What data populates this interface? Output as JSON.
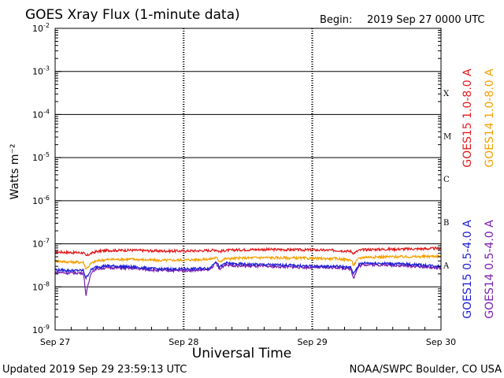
{
  "header": {
    "title": "GOES Xray Flux (1-minute data)",
    "begin_label": "Begin:",
    "begin_value": "2019 Sep 27 0000 UTC"
  },
  "footer": {
    "updated": "Updated 2019 Sep 29 23:59:13 UTC",
    "credit": "NOAA/SWPC Boulder, CO USA"
  },
  "colors": {
    "goes15_long": "#e41a1c",
    "goes14_long": "#f5a000",
    "goes15_short": "#1f1fd6",
    "goes14_short": "#7a1fb0"
  },
  "chart_data": {
    "type": "line",
    "title": "GOES Xray Flux (1-minute data)",
    "xlabel": "Universal Time",
    "ylabel": "Watts m⁻²",
    "y_scale": "log",
    "ylim": [
      1e-09,
      0.01
    ],
    "xlim": [
      "2019-09-27",
      "2019-09-30"
    ],
    "x_ticks": [
      "Sep 27",
      "Sep 28",
      "Sep 29",
      "Sep 30"
    ],
    "y_ticks": [
      {
        "value": 1e-09,
        "base": "10",
        "exp": "-9"
      },
      {
        "value": 1e-08,
        "base": "10",
        "exp": "-8"
      },
      {
        "value": 1e-07,
        "base": "10",
        "exp": "-7"
      },
      {
        "value": 1e-06,
        "base": "10",
        "exp": "-6"
      },
      {
        "value": 1e-05,
        "base": "10",
        "exp": "-5"
      },
      {
        "value": 0.0001,
        "base": "10",
        "exp": "-4"
      },
      {
        "value": 0.001,
        "base": "10",
        "exp": "-3"
      },
      {
        "value": 0.01,
        "base": "10",
        "exp": "-2"
      }
    ],
    "flare_classes": [
      {
        "label": "A",
        "value": 3.2e-08
      },
      {
        "label": "B",
        "value": 3.2e-07
      },
      {
        "label": "C",
        "value": 3.2e-06
      },
      {
        "label": "M",
        "value": 3.2e-05
      },
      {
        "label": "X",
        "value": 0.00032
      }
    ],
    "series": [
      {
        "name": "GOES15 1.0-8.0 A",
        "x": [
          0,
          0.1,
          0.22,
          0.24,
          0.28,
          0.32,
          0.4,
          0.6,
          0.8,
          1.0,
          1.2,
          1.25,
          1.28,
          1.32,
          1.4,
          1.6,
          1.8,
          2.0,
          2.2,
          2.3,
          2.32,
          2.36,
          2.4,
          2.6,
          2.8,
          3.0
        ],
        "values": [
          6.5e-08,
          6.3e-08,
          6.2e-08,
          5.2e-08,
          6e-08,
          6.6e-08,
          7e-08,
          7.1e-08,
          6.8e-08,
          6.8e-08,
          7e-08,
          7.3e-08,
          6.6e-08,
          7e-08,
          7.2e-08,
          7.4e-08,
          7.3e-08,
          7.2e-08,
          7e-08,
          6.7e-08,
          6e-08,
          7e-08,
          7.3e-08,
          7.5e-08,
          7.6e-08,
          7.8e-08
        ]
      },
      {
        "name": "GOES14 1.0-8.0 A",
        "x": [
          0,
          0.1,
          0.22,
          0.24,
          0.28,
          0.32,
          0.4,
          0.6,
          0.8,
          1.0,
          1.2,
          1.25,
          1.28,
          1.32,
          1.4,
          1.6,
          1.8,
          2.0,
          2.2,
          2.3,
          2.32,
          2.36,
          2.4,
          2.6,
          2.8,
          3.0
        ],
        "values": [
          4e-08,
          3.8e-08,
          3.7e-08,
          2.6e-08,
          3.5e-08,
          4e-08,
          4.3e-08,
          4.4e-08,
          4.1e-08,
          4.2e-08,
          4.4e-08,
          4.8e-08,
          3.9e-08,
          4.5e-08,
          4.6e-08,
          4.8e-08,
          4.7e-08,
          4.6e-08,
          4.5e-08,
          4.2e-08,
          3.2e-08,
          4.6e-08,
          4.9e-08,
          5e-08,
          5e-08,
          5.2e-08
        ]
      },
      {
        "name": "GOES15 0.5-4.0 A",
        "x": [
          0,
          0.1,
          0.22,
          0.24,
          0.28,
          0.32,
          0.4,
          0.6,
          0.8,
          1.0,
          1.2,
          1.25,
          1.28,
          1.32,
          1.4,
          1.6,
          1.8,
          2.0,
          2.2,
          2.3,
          2.32,
          2.36,
          2.4,
          2.6,
          2.8,
          3.0
        ],
        "values": [
          2.5e-08,
          2.4e-08,
          2.4e-08,
          1.6e-08,
          2.5e-08,
          2.9e-08,
          3.1e-08,
          2.9e-08,
          2.6e-08,
          2.6e-08,
          2.7e-08,
          4e-08,
          2.8e-08,
          3.6e-08,
          3.4e-08,
          3.3e-08,
          3.2e-08,
          3e-08,
          3e-08,
          2.8e-08,
          2e-08,
          3.3e-08,
          3.6e-08,
          3.5e-08,
          3.3e-08,
          3e-08
        ]
      },
      {
        "name": "GOES14 0.5-4.0 A",
        "x": [
          0,
          0.1,
          0.22,
          0.24,
          0.28,
          0.32,
          0.4,
          0.6,
          0.8,
          1.0,
          1.2,
          1.25,
          1.28,
          1.32,
          1.4,
          1.6,
          1.8,
          2.0,
          2.2,
          2.3,
          2.32,
          2.36,
          2.4,
          2.6,
          2.8,
          3.0
        ],
        "values": [
          2.2e-08,
          2.1e-08,
          2.1e-08,
          6.5e-09,
          2.2e-08,
          2.6e-08,
          2.8e-08,
          2.7e-08,
          2.4e-08,
          2.4e-08,
          2.5e-08,
          3.6e-08,
          2.5e-08,
          3.3e-08,
          3.1e-08,
          3e-08,
          2.9e-08,
          2.8e-08,
          2.8e-08,
          2.6e-08,
          1.6e-08,
          3e-08,
          3.3e-08,
          3.2e-08,
          3e-08,
          2.7e-08
        ]
      }
    ],
    "grid": true,
    "legend_placement": "right, vertical"
  }
}
